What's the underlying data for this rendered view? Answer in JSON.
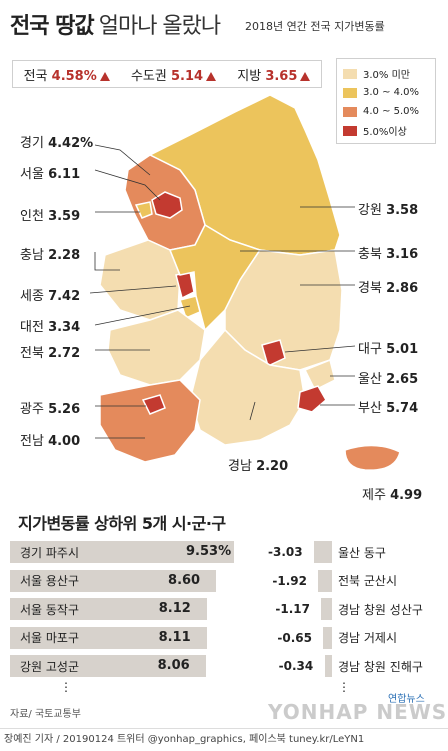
{
  "title": {
    "bold": "전국 땅값",
    "light": "얼마나 올랐나"
  },
  "subtitle": "2018년 연간 전국 지가변동률",
  "summary": [
    {
      "label": "전국",
      "value": "4.58%"
    },
    {
      "label": "수도권",
      "value": "5.14"
    },
    {
      "label": "지방",
      "value": "3.65"
    }
  ],
  "legend": [
    {
      "label": "3.0% 미만",
      "color": "#f4ddb0"
    },
    {
      "label": "3.0 ~ 4.0%",
      "color": "#ecc45c"
    },
    {
      "label": "4.0 ~ 5.0%",
      "color": "#e48a5c"
    },
    {
      "label": "5.0%이상",
      "color": "#c33a30"
    }
  ],
  "regions": [
    {
      "name": "경기",
      "value": "4.42%"
    },
    {
      "name": "서울",
      "value": "6.11"
    },
    {
      "name": "인천",
      "value": "3.59"
    },
    {
      "name": "충남",
      "value": "2.28"
    },
    {
      "name": "세종",
      "value": "7.42"
    },
    {
      "name": "대전",
      "value": "3.34"
    },
    {
      "name": "전북",
      "value": "2.72"
    },
    {
      "name": "광주",
      "value": "5.26"
    },
    {
      "name": "전남",
      "value": "4.00"
    },
    {
      "name": "강원",
      "value": "3.58"
    },
    {
      "name": "충북",
      "value": "3.16"
    },
    {
      "name": "경북",
      "value": "2.86"
    },
    {
      "name": "대구",
      "value": "5.01"
    },
    {
      "name": "울산",
      "value": "2.65"
    },
    {
      "name": "부산",
      "value": "5.74"
    },
    {
      "name": "경남",
      "value": "2.20"
    },
    {
      "name": "제주",
      "value": "4.99"
    }
  ],
  "ranking_title": "지가변동률 상하위 5개 시·군·구",
  "top5": [
    {
      "name": "경기 파주시",
      "value": "9.53%",
      "pct": 9.53
    },
    {
      "name": "서울 용산구",
      "value": "8.60",
      "pct": 8.6
    },
    {
      "name": "서울 동작구",
      "value": "8.12",
      "pct": 8.12
    },
    {
      "name": "서울 마포구",
      "value": "8.11",
      "pct": 8.11
    },
    {
      "name": "강원 고성군",
      "value": "8.06",
      "pct": 8.06
    }
  ],
  "bottom5": [
    {
      "name": "울산 동구",
      "value": "-3.03",
      "pct": -3.03
    },
    {
      "name": "전북 군산시",
      "value": "-1.92",
      "pct": -1.92
    },
    {
      "name": "경남 창원 성산구",
      "value": "-1.17",
      "pct": -1.17
    },
    {
      "name": "경남 거제시",
      "value": "-0.65",
      "pct": -0.65
    },
    {
      "name": "경남 창원 진해구",
      "value": "-0.34",
      "pct": -0.34
    }
  ],
  "ellipsis": "⋮",
  "source": "자료/ 국토교통부",
  "footer": "장예진 기자 / 20190124 트위터 @yonhap_graphics, 페이스북 tuney.kr/LeYN1",
  "watermark": "YONHAP NEWS",
  "logo": "연합뉴스"
}
